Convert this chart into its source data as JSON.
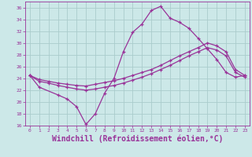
{
  "background_color": "#cce8e8",
  "grid_color": "#aacccc",
  "line_color": "#993399",
  "xlim": [
    -0.5,
    23.5
  ],
  "ylim": [
    16,
    37
  ],
  "xlabel": "Windchill (Refroidissement éolien,°C)",
  "xlabel_fontsize": 7,
  "xticks": [
    0,
    1,
    2,
    3,
    4,
    5,
    6,
    7,
    8,
    9,
    10,
    11,
    12,
    13,
    14,
    15,
    16,
    17,
    18,
    19,
    20,
    21,
    22,
    23
  ],
  "yticks": [
    16,
    18,
    20,
    22,
    24,
    26,
    28,
    30,
    32,
    34,
    36
  ],
  "line1_x": [
    0,
    1,
    3,
    4,
    5,
    6,
    7,
    8,
    9,
    10,
    11,
    12,
    13,
    14,
    15,
    16,
    17,
    18,
    19,
    20,
    21,
    22,
    23
  ],
  "line1_y": [
    24.5,
    22.5,
    21.2,
    20.5,
    19.2,
    16.2,
    18.0,
    21.5,
    24.0,
    28.5,
    31.8,
    33.2,
    35.5,
    36.2,
    34.2,
    33.5,
    32.5,
    30.8,
    29.0,
    27.2,
    25.0,
    24.2,
    24.5
  ],
  "line2_x": [
    0,
    1,
    2,
    3,
    4,
    5,
    6,
    7,
    8,
    9,
    10,
    11,
    12,
    13,
    14,
    15,
    16,
    17,
    18,
    19,
    20,
    21,
    22,
    23
  ],
  "line2_y": [
    24.5,
    23.8,
    23.5,
    23.2,
    23.0,
    22.8,
    22.7,
    23.0,
    23.3,
    23.6,
    24.0,
    24.5,
    25.0,
    25.5,
    26.2,
    27.0,
    27.8,
    28.5,
    29.2,
    30.0,
    29.5,
    28.5,
    25.5,
    24.5
  ],
  "line3_x": [
    0,
    1,
    2,
    3,
    4,
    5,
    6,
    7,
    8,
    9,
    10,
    11,
    12,
    13,
    14,
    15,
    16,
    17,
    18,
    19,
    20,
    21,
    22,
    23
  ],
  "line3_y": [
    24.5,
    23.5,
    23.2,
    22.8,
    22.5,
    22.2,
    22.0,
    22.2,
    22.5,
    22.8,
    23.2,
    23.7,
    24.2,
    24.8,
    25.5,
    26.2,
    27.0,
    27.8,
    28.5,
    29.2,
    28.8,
    27.8,
    25.0,
    24.2
  ]
}
